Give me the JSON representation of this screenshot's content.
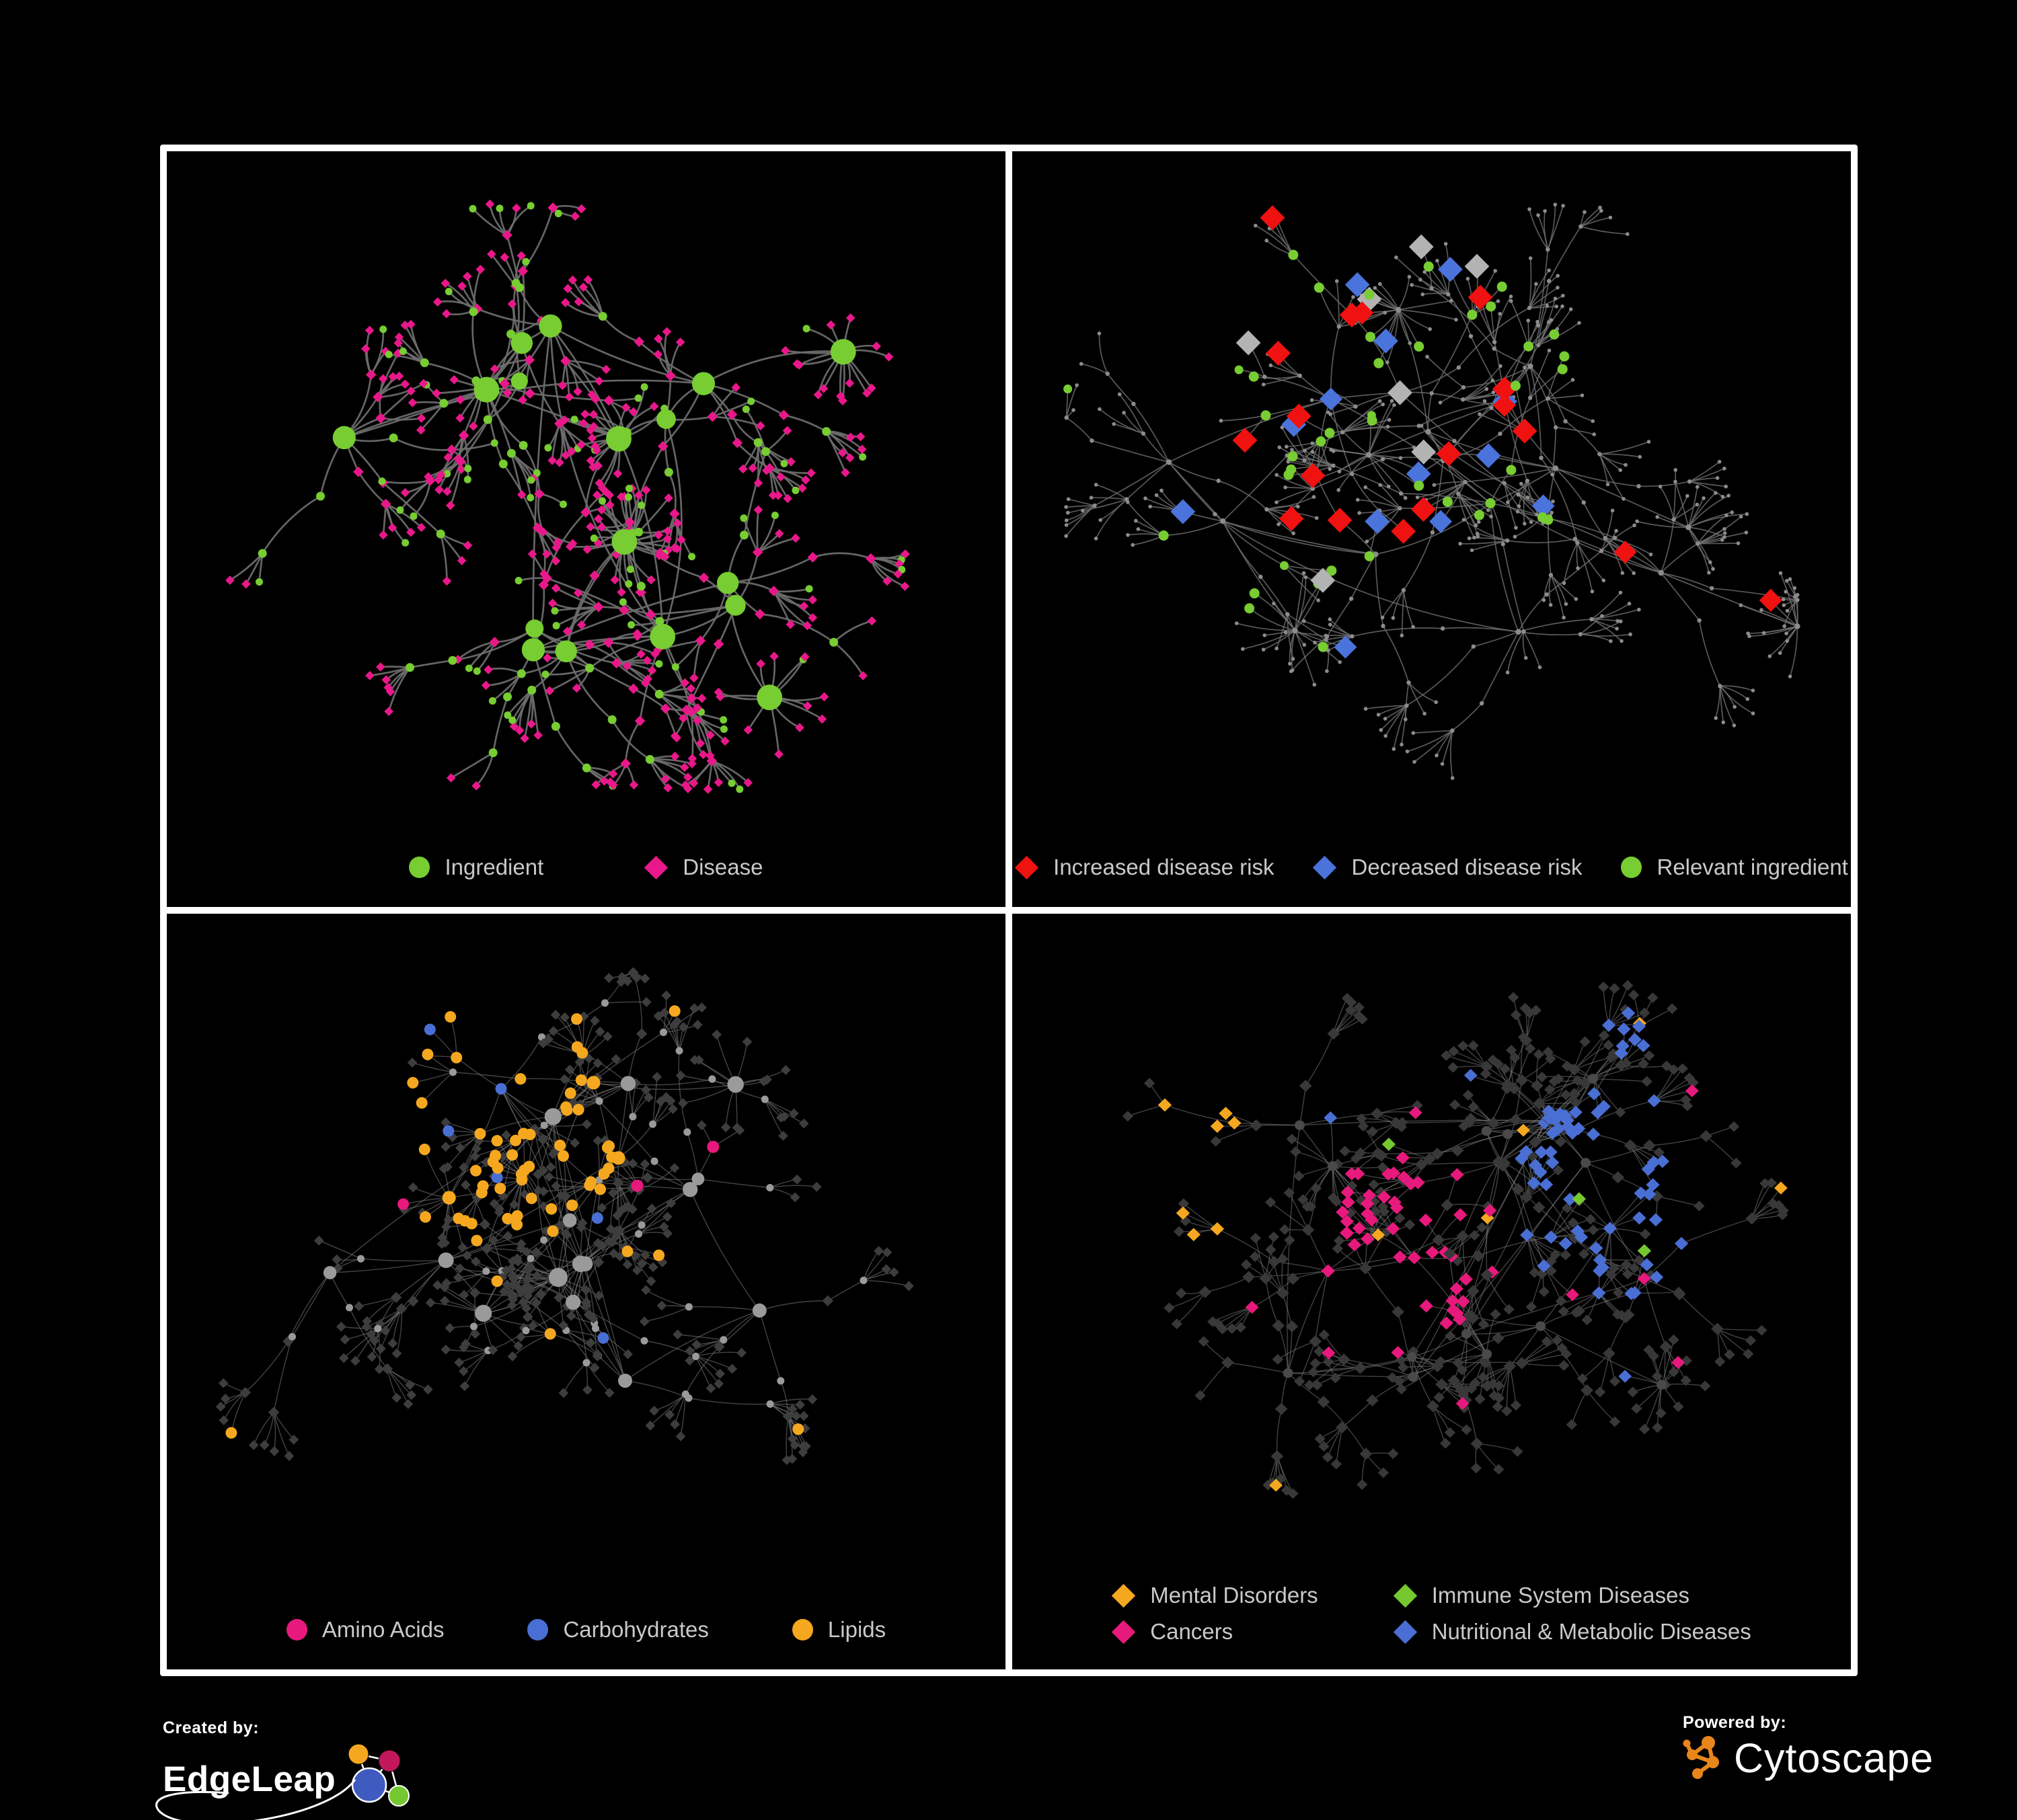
{
  "page": {
    "background": "#000000",
    "frame_color": "#ffffff"
  },
  "panels": [
    {
      "id": "ingredient-disease",
      "legend": [
        {
          "label": "Ingredient",
          "shape": "circle",
          "color": "#77CD31"
        },
        {
          "label": "Disease",
          "shape": "diamond",
          "color": "#E9188A"
        }
      ],
      "network": {
        "style": "p1",
        "seed": 9,
        "hubs": 13,
        "spread": 330,
        "branch": 98,
        "leaf": 54,
        "bursts": 4,
        "edge_color": "#6E6E6E",
        "edge_width": 2.7,
        "edge_opacity": 0.92,
        "curve": 0.34,
        "palette": {
          "ingredient": "#77CD31",
          "disease": "#E9188A"
        }
      }
    },
    {
      "id": "disease-risk",
      "legend": [
        {
          "label": "Increased disease risk",
          "shape": "diamond",
          "color": "#F01111"
        },
        {
          "label": "Decreased disease risk",
          "shape": "diamond",
          "color": "#4A73DB"
        },
        {
          "label": "Relevant ingredient",
          "shape": "circle",
          "color": "#77CD31"
        }
      ],
      "network": {
        "style": "p2",
        "seed": 23,
        "hubs": 13,
        "spread": 340,
        "branch": 102,
        "leaf": 56,
        "bursts": 5,
        "edge_color": "#6F6F6F",
        "edge_width": 1.7,
        "edge_opacity": 0.8,
        "curve": 0.22,
        "palette": {
          "increased": "#F01111",
          "decreased": "#4A73DB",
          "uncertain": "#B3B3B3",
          "ingredient": "#77CD31",
          "base": "#8C8C8C"
        }
      }
    },
    {
      "id": "nutrients",
      "legend": [
        {
          "label": "Amino Acids",
          "shape": "circle",
          "color": "#E8197D"
        },
        {
          "label": "Carbohydrates",
          "shape": "circle",
          "color": "#4A6FD4"
        },
        {
          "label": "Lipids",
          "shape": "circle",
          "color": "#F5A81F"
        }
      ],
      "network": {
        "style": "p3",
        "seed": 5,
        "hubs": 14,
        "spread": 330,
        "branch": 96,
        "leaf": 52,
        "bursts": 5,
        "edge_color": "#7A7A7A",
        "edge_width": 1.4,
        "edge_opacity": 0.55,
        "curve": 0.18,
        "palette": {
          "amino": "#E8197D",
          "carb": "#4A6FD4",
          "lipid": "#F5A81F",
          "dark": "#3D3D3D",
          "gray": "#9A9A9A"
        }
      }
    },
    {
      "id": "disease-classes",
      "legend_columns": 2,
      "legend": [
        {
          "label": "Mental Disorders",
          "shape": "diamond",
          "color": "#F5A81F"
        },
        {
          "label": "Immune System Diseases",
          "shape": "diamond",
          "color": "#76C831"
        },
        {
          "label": "Cancers",
          "shape": "diamond",
          "color": "#E8197D"
        },
        {
          "label": "Nutritional & Metabolic Diseases",
          "shape": "diamond",
          "color": "#4A6FD4"
        }
      ],
      "network": {
        "style": "p4",
        "seed": 41,
        "hubs": 15,
        "spread": 340,
        "branch": 96,
        "leaf": 52,
        "bursts": 6,
        "edge_color": "#848484",
        "edge_width": 1.4,
        "edge_opacity": 0.5,
        "curve": 0.15,
        "palette": {
          "mental": "#F5A81F",
          "immune": "#76C831",
          "cancers": "#E8197D",
          "nutritional": "#4A6FD4",
          "dark": "#383838",
          "hub": "#4A4A4A"
        }
      }
    }
  ],
  "footer": {
    "created_by": {
      "label": "Created by:",
      "brand": "EdgeLeap",
      "logo_colors": {
        "orange": "#F5A81F",
        "pink": "#C2185B",
        "blue": "#3F5BBF",
        "green": "#76C831",
        "line": "#FFFFFF"
      }
    },
    "powered_by": {
      "label": "Powered by:",
      "brand": "Cytoscape",
      "logo_color": "#E8861B"
    }
  }
}
